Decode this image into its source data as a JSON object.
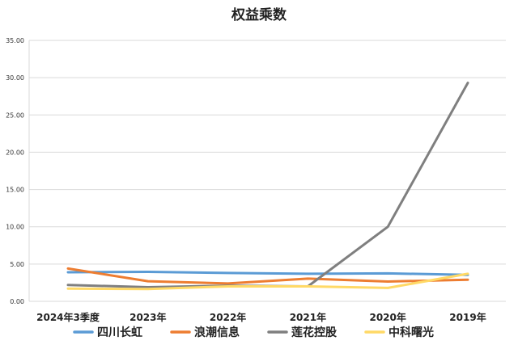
{
  "chart_data": {
    "type": "line",
    "title": "权益乘数",
    "categories": [
      "2024年3季度",
      "2023年",
      "2022年",
      "2021年",
      "2020年",
      "2019年"
    ],
    "ylim": [
      0,
      35
    ],
    "yticks": [
      "0.00",
      "5.00",
      "10.00",
      "15.00",
      "20.00",
      "25.00",
      "30.00",
      "35.00"
    ],
    "grid": true,
    "legend_position": "bottom",
    "series": [
      {
        "name": "四川长虹",
        "color": "#5B9BD5",
        "values": [
          3.9,
          3.95,
          3.8,
          3.7,
          3.75,
          3.55
        ]
      },
      {
        "name": "浪潮信息",
        "color": "#ED7D31",
        "values": [
          4.4,
          2.7,
          2.4,
          3.05,
          2.65,
          2.9
        ]
      },
      {
        "name": "莲花控股",
        "color": "#7F7F7F",
        "values": [
          2.2,
          1.9,
          2.1,
          2.0,
          10.0,
          29.3
        ]
      },
      {
        "name": "中科曙光",
        "color": "#FFD966",
        "values": [
          1.7,
          1.65,
          2.0,
          2.0,
          1.8,
          3.7
        ]
      }
    ]
  }
}
